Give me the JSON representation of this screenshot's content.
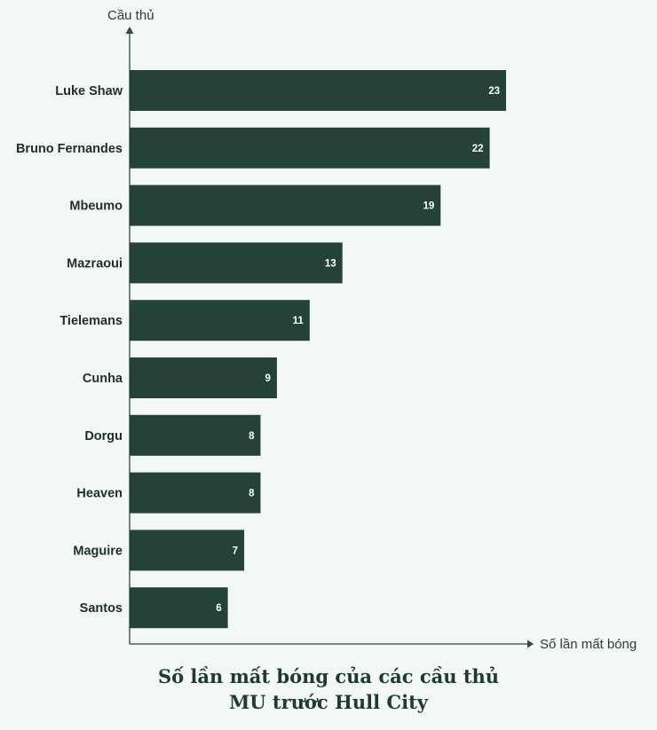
{
  "chart_data": {
    "type": "bar",
    "orientation": "horizontal",
    "title_lines": [
      "Số lần mất bóng của các cầu thủ",
      "MU trước Hull City"
    ],
    "xlabel": "Số lần mất bóng",
    "ylabel": "Cầu thủ",
    "categories": [
      "Luke Shaw",
      "Bruno Fernandes",
      "Mbeumo",
      "Mazraoui",
      "Tielemans",
      "Cunha",
      "Dorgu",
      "Heaven",
      "Maguire",
      "Santos"
    ],
    "values": [
      23,
      22,
      19,
      13,
      11,
      9,
      8,
      8,
      7,
      6
    ],
    "xlim": [
      0,
      23
    ],
    "grid": false,
    "legend": "none",
    "bar_color": "#244238",
    "data_labels": "inside-end"
  }
}
